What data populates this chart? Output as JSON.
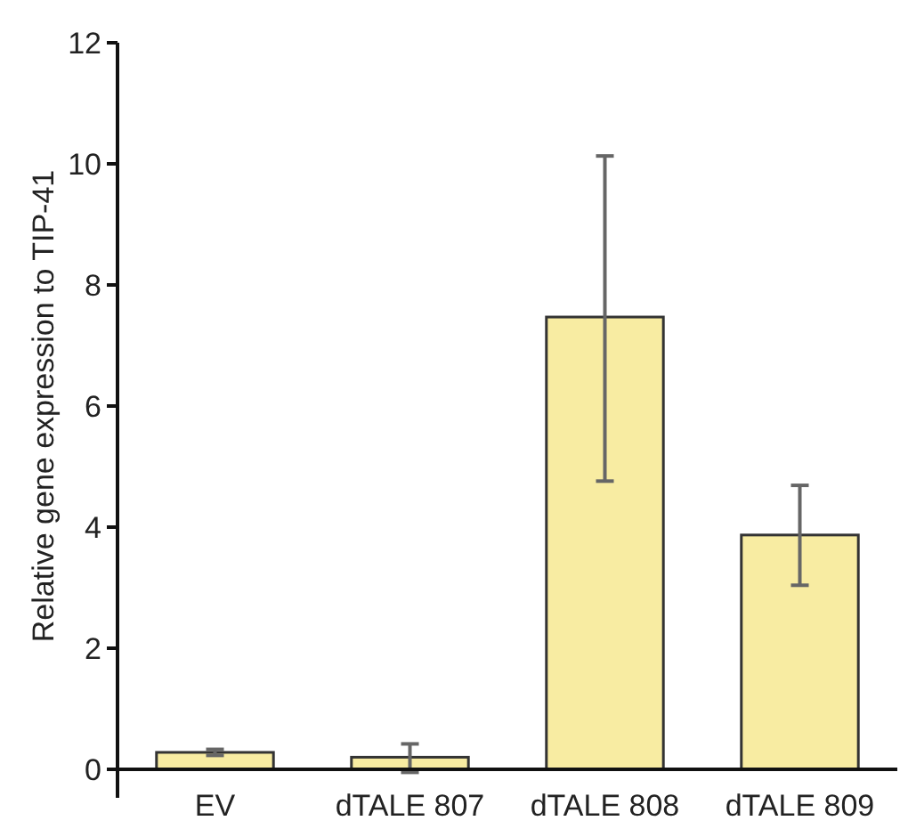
{
  "chart_data": {
    "type": "bar",
    "ylabel": "Relative gene expression to TIP-41",
    "categories": [
      "EV",
      "dTALE 807",
      "dTALE 808",
      "dTALE 809"
    ],
    "values": [
      0.28,
      0.2,
      7.47,
      3.87
    ],
    "color": "#f8eca2",
    "errors": [
      [
        0.23,
        0.33
      ],
      [
        -0.05,
        0.42
      ],
      [
        4.76,
        10.13
      ],
      [
        3.04,
        4.69
      ]
    ],
    "ylim": [
      0,
      12
    ],
    "yticks": [
      0,
      2,
      4,
      6,
      8,
      10,
      12
    ],
    "grid": false
  }
}
